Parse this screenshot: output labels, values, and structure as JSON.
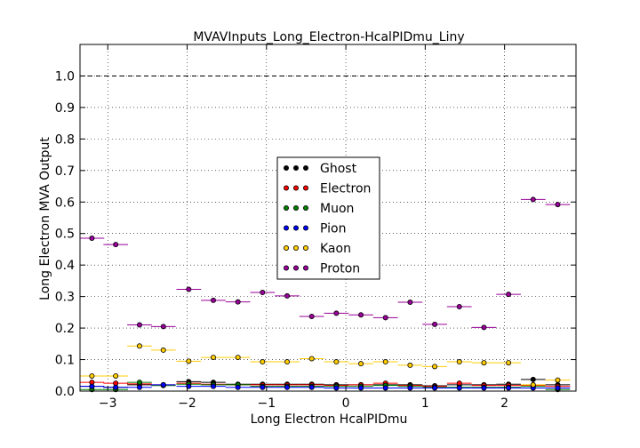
{
  "chart_data": {
    "type": "scatter",
    "title": "MVAVInputs_Long_Electron-HcalPIDmu_Liny",
    "xlabel": "Long Electron HcalPIDmu",
    "ylabel": "Long Electron MVA Output",
    "xlim": [
      -3.35,
      2.9
    ],
    "ylim": [
      0.0,
      1.1
    ],
    "xticks": [
      -3,
      -2,
      -1,
      0,
      1,
      2
    ],
    "xtick_labels": [
      "−3",
      "−2",
      "−1",
      "0",
      "1",
      "2"
    ],
    "yticks": [
      0.0,
      0.1,
      0.2,
      0.3,
      0.4,
      0.5,
      0.6,
      0.7,
      0.8,
      0.9,
      1.0
    ],
    "ytick_labels": [
      "0.0",
      "0.1",
      "0.2",
      "0.3",
      "0.4",
      "0.5",
      "0.6",
      "0.7",
      "0.8",
      "0.9",
      "1.0"
    ],
    "reference_line_y": 1.0,
    "grid": true,
    "legend_position": "center",
    "x": [
      -3.2,
      -2.9,
      -2.6,
      -2.3,
      -1.98,
      -1.67,
      -1.36,
      -1.05,
      -0.74,
      -0.43,
      -0.12,
      0.19,
      0.5,
      0.81,
      1.12,
      1.43,
      1.74,
      2.05,
      2.36,
      2.67
    ],
    "x_halfwidth": 0.155,
    "series": [
      {
        "name": "Ghost",
        "color": "#000000",
        "values": [
          0.015,
          0.012,
          0.02,
          0.018,
          0.03,
          0.028,
          0.022,
          0.022,
          0.022,
          0.022,
          0.02,
          0.02,
          0.02,
          0.02,
          0.017,
          0.02,
          0.02,
          0.022,
          0.037,
          0.02
        ]
      },
      {
        "name": "Electron",
        "color": "#ff0000",
        "values": [
          0.028,
          0.025,
          0.023,
          0.02,
          0.025,
          0.022,
          0.02,
          0.02,
          0.02,
          0.02,
          0.018,
          0.02,
          0.025,
          0.018,
          0.015,
          0.025,
          0.018,
          0.018,
          0.018,
          0.015
        ]
      },
      {
        "name": "Muon",
        "color": "#008000",
        "values": [
          0.005,
          0.005,
          0.028,
          0.018,
          0.022,
          0.02,
          0.02,
          0.015,
          0.015,
          0.015,
          0.015,
          0.015,
          0.018,
          0.015,
          0.012,
          0.012,
          0.012,
          0.012,
          0.015,
          0.005
        ]
      },
      {
        "name": "Pion",
        "color": "#0000ff",
        "values": [
          0.015,
          0.012,
          0.012,
          0.02,
          0.015,
          0.015,
          0.012,
          0.012,
          0.012,
          0.012,
          0.01,
          0.01,
          0.01,
          0.01,
          0.01,
          0.01,
          0.01,
          0.01,
          0.01,
          0.01
        ]
      },
      {
        "name": "Kaon",
        "color": "#ffcc00",
        "values": [
          0.048,
          0.048,
          0.143,
          0.13,
          0.095,
          0.107,
          0.107,
          0.093,
          0.093,
          0.103,
          0.093,
          0.087,
          0.093,
          0.082,
          0.078,
          0.093,
          0.09,
          0.09,
          0.02,
          0.035
        ]
      },
      {
        "name": "Proton",
        "color": "#990099",
        "values": [
          0.485,
          0.465,
          0.21,
          0.205,
          0.323,
          0.288,
          0.283,
          0.313,
          0.302,
          0.237,
          0.247,
          0.242,
          0.233,
          0.282,
          0.212,
          0.268,
          0.202,
          0.307,
          0.608,
          0.592
        ]
      }
    ]
  }
}
